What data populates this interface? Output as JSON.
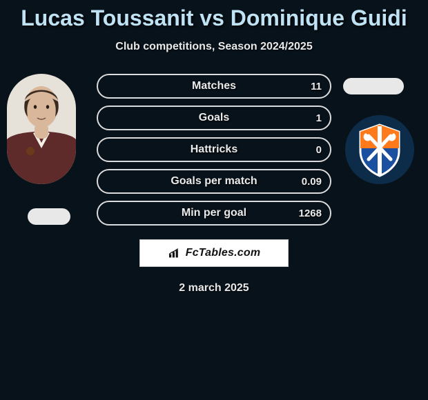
{
  "title": "Lucas Toussanit vs Dominique Guidi",
  "subtitle": "Club competitions, Season 2024/2025",
  "date": "2 march 2025",
  "colors": {
    "background": "#08121a",
    "title_color": "#bfe3f5",
    "text_color": "#e8e8e8",
    "pill_border": "#dcdcdc",
    "brand_bg": "#ffffff",
    "brand_border": "#c8c8c8",
    "brand_text": "#111111"
  },
  "brand": {
    "text": "FcTables.com"
  },
  "left_player": {
    "photo": {
      "bg": "#e6e2d9",
      "skin": "#d9b79a",
      "hair": "#3a2a20",
      "shirt": "#5e2a2a",
      "collar": "#f4f0e8",
      "badge": "#6a3a1a"
    }
  },
  "right_player": {
    "logo": {
      "circle_bg": "#0d2c4a",
      "shield_top": "#ff7a1a",
      "shield_bottom": "#1b4fa0",
      "shield_stroke": "#ffffff"
    }
  },
  "stats": [
    {
      "label": "Matches",
      "value": "11",
      "fill_pct": 0,
      "fill_color": "#ff7a1a"
    },
    {
      "label": "Goals",
      "value": "1",
      "fill_pct": 0,
      "fill_color": "#ff7a1a"
    },
    {
      "label": "Hattricks",
      "value": "0",
      "fill_pct": 0,
      "fill_color": "#ff7a1a"
    },
    {
      "label": "Goals per match",
      "value": "0.09",
      "fill_pct": 0,
      "fill_color": "#ff7a1a"
    },
    {
      "label": "Min per goal",
      "value": "1268",
      "fill_pct": 0,
      "fill_color": "#ff7a1a"
    }
  ]
}
